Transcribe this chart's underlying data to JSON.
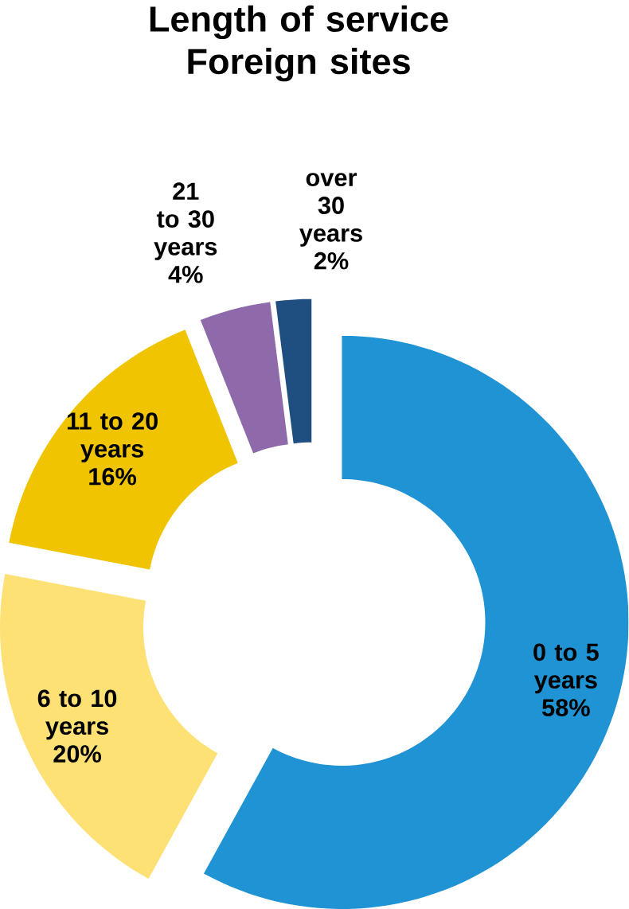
{
  "chart_data": {
    "type": "donut",
    "title": "Length of service Foreign sites",
    "categories": [
      "0 to 5 years",
      "6 to 10 years",
      "11 to 20 years",
      "21 to 30 years",
      "over 30 years"
    ],
    "values": [
      58,
      20,
      16,
      4,
      2
    ],
    "value_labels": [
      "58%",
      "20%",
      "16%",
      "4%",
      "2%"
    ],
    "colors": [
      "#1f93d3",
      "#fee175",
      "#f0c400",
      "#8e6aab",
      "#1f4e81"
    ]
  }
}
